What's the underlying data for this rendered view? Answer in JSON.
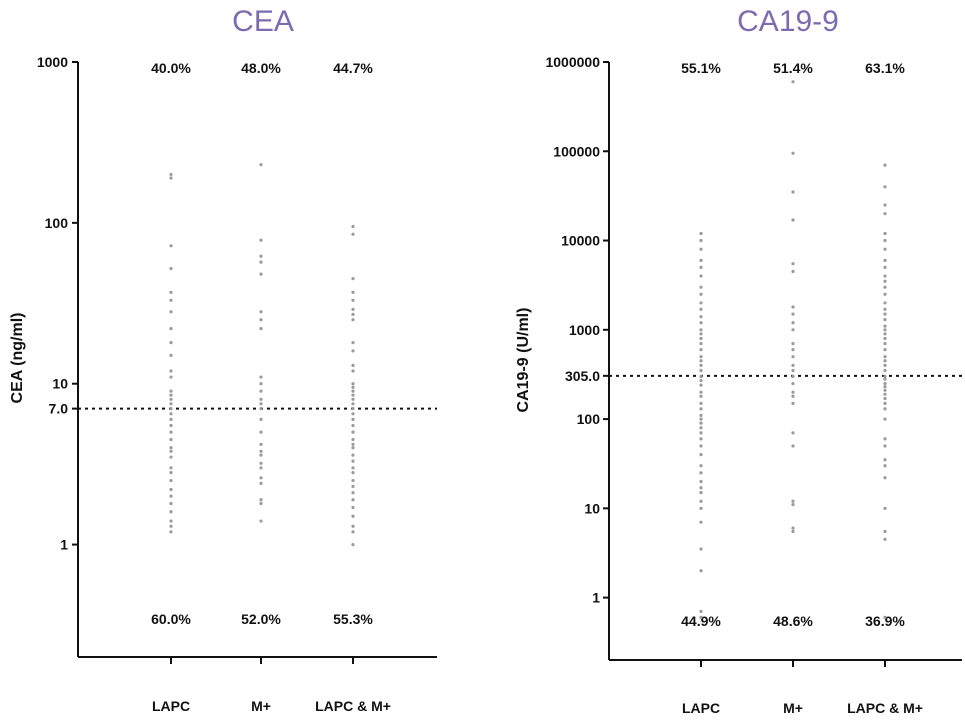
{
  "chart_data": [
    {
      "type": "scatter",
      "title": "CEA",
      "ylabel": "CEA (ng/ml)",
      "yscale": "log",
      "ylim": [
        0.2,
        1000
      ],
      "yticks": [
        {
          "value": 1,
          "label": "1"
        },
        {
          "value": 7,
          "label": "7.0"
        },
        {
          "value": 10,
          "label": "10"
        },
        {
          "value": 100,
          "label": "100"
        },
        {
          "value": 1000,
          "label": "1000"
        }
      ],
      "cutoff": 7,
      "categories": [
        "LAPC",
        "M+",
        "LAPC & M+"
      ],
      "above_pct": [
        "40.0%",
        "48.0%",
        "44.7%"
      ],
      "below_pct": [
        "60.0%",
        "52.0%",
        "55.3%"
      ],
      "accent_color": "#7b6bb0",
      "point_color": "#9a9a9a",
      "series": [
        {
          "values": [
            200,
            190,
            72,
            52,
            37,
            33,
            28,
            22,
            18,
            15,
            12,
            11,
            9,
            8.5,
            8,
            7.5,
            7,
            6.5,
            6,
            5.5,
            5,
            4.5,
            4,
            3.8,
            3.5,
            3,
            2.8,
            2.5,
            2.2,
            2,
            1.8,
            1.6,
            1.4,
            1.3,
            1.2
          ]
        },
        {
          "values": [
            230,
            78,
            62,
            57,
            48,
            28,
            25,
            22,
            11,
            10,
            9,
            8,
            7.5,
            7,
            6,
            5,
            4.2,
            3.8,
            3.6,
            3.2,
            3,
            2.6,
            2.4,
            1.9,
            1.8,
            1.4
          ]
        },
        {
          "values": [
            95,
            85,
            45,
            37,
            33,
            29,
            27,
            25,
            18,
            16,
            13,
            12,
            10,
            9.5,
            9,
            8.5,
            8,
            7.5,
            7,
            6.5,
            6,
            5.5,
            5,
            4.5,
            4.2,
            4,
            3.6,
            3.3,
            3,
            2.8,
            2.5,
            2.3,
            2.1,
            1.9,
            1.7,
            1.5,
            1.3,
            1.2,
            1
          ]
        }
      ]
    },
    {
      "type": "scatter",
      "title": "CA19-9",
      "ylabel": "CA19-9 (U/ml)",
      "yscale": "log",
      "ylim": [
        0.2,
        1000000
      ],
      "yticks": [
        {
          "value": 1,
          "label": "1"
        },
        {
          "value": 10,
          "label": "10"
        },
        {
          "value": 100,
          "label": "100"
        },
        {
          "value": 305,
          "label": "305.0"
        },
        {
          "value": 1000,
          "label": "1000"
        },
        {
          "value": 10000,
          "label": "10000"
        },
        {
          "value": 100000,
          "label": "100000"
        },
        {
          "value": 1000000,
          "label": "1000000"
        }
      ],
      "cutoff": 305,
      "categories": [
        "LAPC",
        "M+",
        "LAPC & M+"
      ],
      "above_pct": [
        "55.1%",
        "51.4%",
        "63.1%"
      ],
      "below_pct": [
        "44.9%",
        "48.6%",
        "36.9%"
      ],
      "accent_color": "#7b6bb0",
      "point_color": "#9a9a9a",
      "series": [
        {
          "values": [
            12000,
            10000,
            8000,
            6000,
            5000,
            4000,
            3000,
            2500,
            2000,
            1700,
            1400,
            1200,
            1000,
            900,
            800,
            700,
            600,
            500,
            450,
            400,
            350,
            300,
            270,
            240,
            200,
            180,
            150,
            130,
            110,
            100,
            90,
            80,
            70,
            60,
            50,
            40,
            30,
            25,
            20,
            17,
            15,
            12,
            10,
            7,
            3.5,
            2,
            0.7,
            0.6
          ]
        },
        {
          "values": [
            600000,
            95000,
            35000,
            17000,
            5500,
            4500,
            1800,
            1500,
            1200,
            1000,
            700,
            600,
            500,
            400,
            350,
            300,
            250,
            200,
            180,
            150,
            70,
            50,
            12,
            11,
            6,
            5.5
          ]
        },
        {
          "values": [
            70000,
            40000,
            25000,
            20000,
            12000,
            10000,
            8000,
            6000,
            5000,
            4000,
            3500,
            3000,
            2500,
            2000,
            1700,
            1500,
            1300,
            1100,
            1000,
            900,
            800,
            700,
            600,
            500,
            450,
            400,
            350,
            300,
            280,
            250,
            230,
            210,
            190,
            170,
            150,
            130,
            100,
            60,
            50,
            35,
            30,
            22,
            10,
            5.5,
            4.5,
            0.6
          ]
        }
      ]
    }
  ]
}
